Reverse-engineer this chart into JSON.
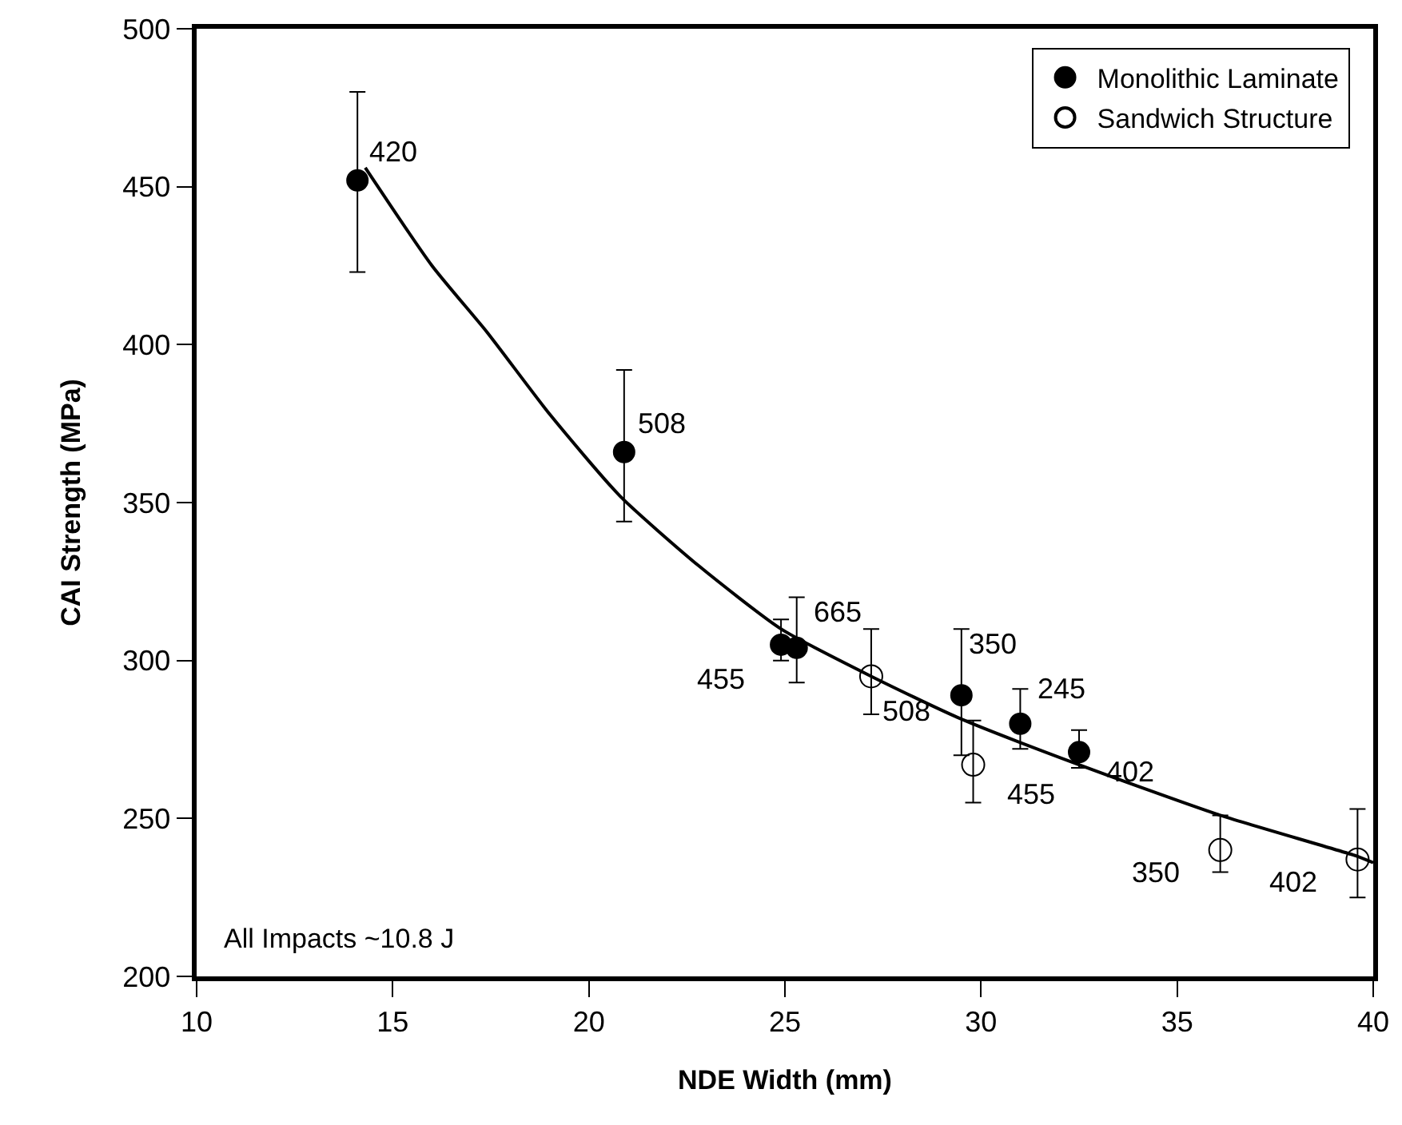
{
  "chart_data": {
    "type": "scatter",
    "xlabel": "NDE Width (mm)",
    "ylabel": "CAI Strength (MPa)",
    "xlim": [
      10,
      40
    ],
    "xticks": [
      10,
      15,
      20,
      25,
      30,
      35,
      40
    ],
    "ylim": [
      200,
      500
    ],
    "yticks": [
      200,
      250,
      300,
      350,
      400,
      450,
      500
    ],
    "legend": "top right",
    "marker": "circle",
    "series": [
      {
        "name": "Monolithic Laminate",
        "color": "#000000",
        "x": [
          14.1,
          20.9,
          24.9,
          25.3,
          29.5,
          31.0,
          32.5
        ],
        "values": [
          452,
          366,
          305,
          304,
          289,
          280,
          271
        ],
        "errors": [
          [
            423,
            480
          ],
          [
            344,
            392
          ],
          [
            300,
            313
          ],
          [
            293,
            320
          ],
          [
            270,
            310
          ],
          [
            272,
            291
          ],
          [
            266,
            278
          ]
        ]
      },
      {
        "name": "Sandwich Structure",
        "color": "#000000",
        "x": [
          27.2,
          29.8,
          36.1,
          39.6
        ],
        "values": [
          295,
          267,
          240,
          237
        ],
        "errors": [
          [
            283,
            310
          ],
          [
            255,
            281
          ],
          [
            233,
            251
          ],
          [
            225,
            253
          ]
        ]
      },
      {
        "type": "line",
        "color": "#000000",
        "marker": "none",
        "x": [
          14.3,
          16.0,
          17.4,
          19.0,
          20.8,
          22.8,
          24.9,
          27.2,
          29.4,
          32.5,
          36.1,
          39.6,
          40.0
        ],
        "values": [
          456,
          425,
          404,
          378,
          352,
          330,
          310,
          295,
          282,
          267,
          251,
          238,
          236
        ]
      }
    ],
    "annotations": [
      {
        "text": "420",
        "x": 14.1,
        "y": 452
      },
      {
        "text": "508",
        "x": 20.9,
        "y": 366
      },
      {
        "text": "455",
        "x": 24.9,
        "y": 305
      },
      {
        "text": "665",
        "x": 25.3,
        "y": 304
      },
      {
        "text": "508",
        "x": 27.2,
        "y": 295
      },
      {
        "text": "350",
        "x": 29.5,
        "y": 289
      },
      {
        "text": "245",
        "x": 31.0,
        "y": 280
      },
      {
        "text": "402",
        "x": 32.5,
        "y": 271
      },
      {
        "text": "455",
        "x": 29.8,
        "y": 267
      },
      {
        "text": "350",
        "x": 36.1,
        "y": 240
      },
      {
        "text": "402",
        "x": 39.6,
        "y": 237
      },
      "All Impacts ~10.8 J"
    ]
  }
}
